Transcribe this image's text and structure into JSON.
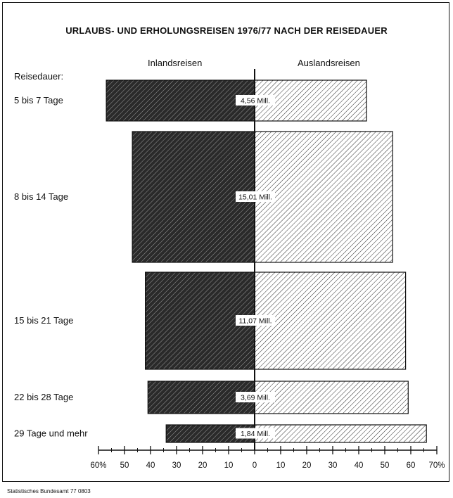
{
  "title": "URLAUBS- UND ERHOLUNGSREISEN 1976/77 NACH DER REISEDAUER",
  "row_header": "Reisedauer:",
  "source": "Statistisches Bundesamt 77 0803",
  "colors": {
    "ink": "#111111",
    "dark_fill": "#2a2a2a",
    "light_fill": "#ffffff"
  },
  "chart_data": {
    "type": "bar",
    "subtype": "diverging-horizontal",
    "side_labels": [
      "Inlandsreisen",
      "Auslandsreisen"
    ],
    "categories": [
      "5 bis 7 Tage",
      "8 bis 14 Tage",
      "15 bis 21 Tage",
      "22 bis 28 Tage",
      "29 Tage und mehr"
    ],
    "totals": [
      "4,56 Mill.",
      "15,01 Mill.",
      "11,07 Mill.",
      "3,69 Mill.",
      "1,84 Mill."
    ],
    "series": [
      {
        "name": "Inlandsreisen",
        "values": [
          57,
          47,
          42,
          41,
          34
        ]
      },
      {
        "name": "Auslandsreisen",
        "values": [
          43,
          53,
          58,
          59,
          66
        ]
      }
    ],
    "xlim": [
      -60,
      70
    ],
    "xticks": [
      -60,
      -50,
      -40,
      -30,
      -20,
      -10,
      0,
      10,
      20,
      30,
      40,
      50,
      60,
      70
    ],
    "xtick_labels": [
      "60%",
      "50",
      "40",
      "30",
      "20",
      "10",
      "0",
      "10",
      "20",
      "30",
      "40",
      "50",
      "60",
      "70%"
    ]
  }
}
